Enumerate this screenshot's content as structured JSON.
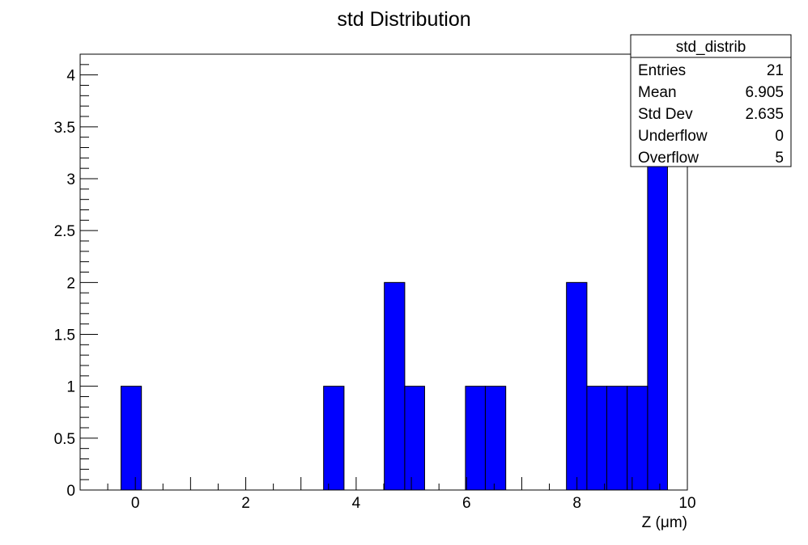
{
  "chart_data": {
    "type": "bar",
    "title": "std Distribution",
    "xlabel": "Z (μm)",
    "ylabel": "",
    "xlim": [
      -1,
      10
    ],
    "ylim": [
      0,
      4.2
    ],
    "x_ticks": [
      "0",
      "2",
      "4",
      "6",
      "8",
      "10"
    ],
    "y_ticks": [
      "0",
      "0.5",
      "1",
      "1.5",
      "2",
      "2.5",
      "3",
      "3.5",
      "4"
    ],
    "bins": [
      {
        "x_low": -0.26,
        "x_high": 0.11,
        "value": 1
      },
      {
        "x_low": 3.41,
        "x_high": 3.78,
        "value": 1
      },
      {
        "x_low": 4.51,
        "x_high": 4.88,
        "value": 2
      },
      {
        "x_low": 4.88,
        "x_high": 5.24,
        "value": 1
      },
      {
        "x_low": 5.98,
        "x_high": 6.34,
        "value": 1
      },
      {
        "x_low": 6.34,
        "x_high": 6.71,
        "value": 1
      },
      {
        "x_low": 7.81,
        "x_high": 8.18,
        "value": 2
      },
      {
        "x_low": 8.18,
        "x_high": 8.54,
        "value": 1
      },
      {
        "x_low": 8.54,
        "x_high": 8.91,
        "value": 1
      },
      {
        "x_low": 8.91,
        "x_high": 9.28,
        "value": 1
      },
      {
        "x_low": 9.28,
        "x_high": 9.64,
        "value": 4
      }
    ],
    "bar_color": "#0000ff",
    "grid": false,
    "legend": "none"
  },
  "stats_box": {
    "title": "std_distrib",
    "rows": [
      {
        "label": "Entries",
        "value": "21"
      },
      {
        "label": "Mean",
        "value": "6.905"
      },
      {
        "label": "Std Dev",
        "value": "2.635"
      },
      {
        "label": "Underflow",
        "value": "0"
      },
      {
        "label": "Overflow",
        "value": "5"
      }
    ]
  }
}
